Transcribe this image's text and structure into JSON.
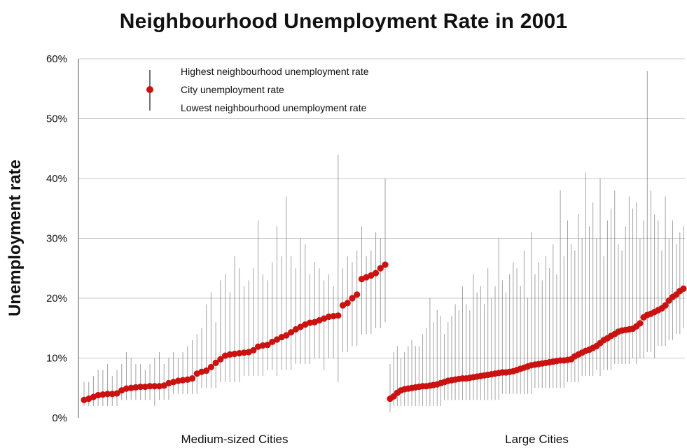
{
  "chart_data": {
    "type": "scatter",
    "title": "Neighbourhood Unemployment Rate in 2001",
    "ylabel": "Unemployment rate",
    "ylim": [
      0,
      60
    ],
    "yticks": [
      0,
      10,
      20,
      30,
      40,
      50,
      60
    ],
    "ytick_labels": [
      "0%",
      "10%",
      "20%",
      "30%",
      "40%",
      "50%",
      "60%"
    ],
    "grid": true,
    "legend": {
      "placement": "top-left",
      "entries": [
        {
          "label": "Highest neighbourhood unemployment rate",
          "mark": "line-top"
        },
        {
          "label": "City unemployment rate",
          "mark": "red-dot"
        },
        {
          "label": "Lowest neighbourhood unemployment rate",
          "mark": "line-bottom"
        }
      ]
    },
    "colors": {
      "city_rate": "#cc1111",
      "range_line": "#555555",
      "grid": "#c8c8c8"
    },
    "groups": [
      {
        "name": "Medium-sized Cities",
        "city_rate": [
          3.0,
          3.2,
          3.5,
          3.8,
          3.9,
          4.0,
          4.0,
          4.1,
          4.6,
          4.9,
          5.0,
          5.1,
          5.2,
          5.2,
          5.3,
          5.3,
          5.3,
          5.4,
          5.8,
          6.0,
          6.2,
          6.3,
          6.4,
          6.6,
          7.4,
          7.7,
          7.9,
          8.5,
          9.2,
          9.8,
          10.4,
          10.6,
          10.7,
          10.8,
          10.9,
          11.0,
          11.3,
          11.9,
          12.1,
          12.2,
          12.7,
          13.1,
          13.5,
          13.8,
          14.3,
          14.8,
          15.2,
          15.6,
          15.9,
          16.0,
          16.3,
          16.6,
          16.9,
          17.0,
          17.1,
          18.8,
          19.2,
          20.0,
          20.6,
          23.2,
          23.5,
          23.8,
          24.2,
          25.0,
          25.6
        ],
        "highest": [
          6,
          6,
          7,
          8,
          8,
          9,
          7,
          8,
          9,
          11,
          10,
          9,
          9,
          8,
          9,
          10,
          11,
          9,
          10,
          11,
          10,
          11,
          12,
          13,
          14,
          15,
          19,
          21,
          16,
          23,
          24,
          21,
          27,
          25,
          22,
          23,
          25,
          33,
          24,
          23,
          26,
          32,
          27,
          37,
          27,
          25,
          30,
          29,
          24,
          26,
          25,
          23,
          24,
          22,
          44,
          25,
          27,
          26,
          28,
          32,
          27,
          28,
          31,
          30,
          40
        ],
        "lowest": [
          2,
          2,
          2,
          2,
          2,
          2,
          2,
          2,
          3,
          3,
          3,
          3,
          3,
          3,
          3,
          2,
          3,
          3,
          3,
          4,
          4,
          4,
          4,
          4,
          4,
          5,
          5,
          5,
          5,
          6,
          6,
          6,
          6,
          6,
          7,
          7,
          7,
          7,
          7,
          8,
          8,
          7,
          8,
          8,
          8,
          9,
          9,
          9,
          9,
          10,
          10,
          8,
          10,
          10,
          6,
          11,
          11,
          12,
          12,
          14,
          14,
          14,
          15,
          15,
          16
        ]
      },
      {
        "name": "Large Cities",
        "city_rate": [
          3.2,
          3.6,
          4.2,
          4.6,
          4.8,
          4.9,
          5.0,
          5.1,
          5.2,
          5.3,
          5.3,
          5.4,
          5.5,
          5.6,
          5.8,
          6.0,
          6.2,
          6.3,
          6.4,
          6.5,
          6.6,
          6.6,
          6.7,
          6.8,
          6.9,
          7.0,
          7.1,
          7.2,
          7.3,
          7.4,
          7.5,
          7.6,
          7.6,
          7.7,
          7.8,
          8.0,
          8.2,
          8.4,
          8.6,
          8.8,
          8.9,
          9.0,
          9.1,
          9.2,
          9.3,
          9.4,
          9.5,
          9.6,
          9.6,
          9.7,
          9.8,
          10.3,
          10.6,
          10.9,
          11.2,
          11.4,
          11.7,
          12.0,
          12.5,
          13.0,
          13.3,
          13.7,
          14.0,
          14.4,
          14.6,
          14.7,
          14.8,
          14.9,
          15.3,
          15.8,
          16.8,
          17.2,
          17.4,
          17.7,
          18.0,
          18.3,
          18.8,
          19.6,
          20.2,
          20.6,
          21.2,
          21.6
        ],
        "highest": [
          9,
          11,
          12,
          10,
          11,
          12,
          13,
          12,
          12,
          14,
          15,
          20,
          16,
          18,
          17,
          14,
          16,
          17,
          19,
          18,
          22,
          19,
          18,
          24,
          21,
          22,
          19,
          25,
          20,
          22,
          30,
          23,
          21,
          24,
          26,
          25,
          22,
          28,
          20,
          31,
          24,
          26,
          23,
          27,
          25,
          29,
          24,
          38,
          27,
          33,
          29,
          28,
          34,
          30,
          41,
          32,
          36,
          30,
          40,
          27,
          33,
          35,
          38,
          29,
          28,
          32,
          37,
          35,
          36,
          30,
          33,
          58,
          38,
          34,
          33,
          28,
          37,
          30,
          33,
          29,
          31,
          32
        ],
        "lowest": [
          1,
          2,
          2,
          2,
          2,
          2,
          2,
          2,
          2,
          2,
          2,
          2,
          2,
          2,
          2,
          3,
          3,
          3,
          3,
          3,
          3,
          3,
          3,
          3,
          3,
          3,
          3,
          3,
          3,
          3,
          3,
          4,
          4,
          4,
          4,
          4,
          4,
          4,
          4,
          4,
          5,
          5,
          5,
          5,
          5,
          5,
          5,
          5,
          5,
          6,
          6,
          6,
          6,
          7,
          7,
          7,
          7,
          8,
          7,
          8,
          8,
          8,
          9,
          9,
          9,
          9,
          9,
          10,
          9,
          10,
          10,
          11,
          11,
          10,
          12,
          12,
          12,
          13,
          13,
          14,
          14,
          15
        ]
      }
    ]
  }
}
